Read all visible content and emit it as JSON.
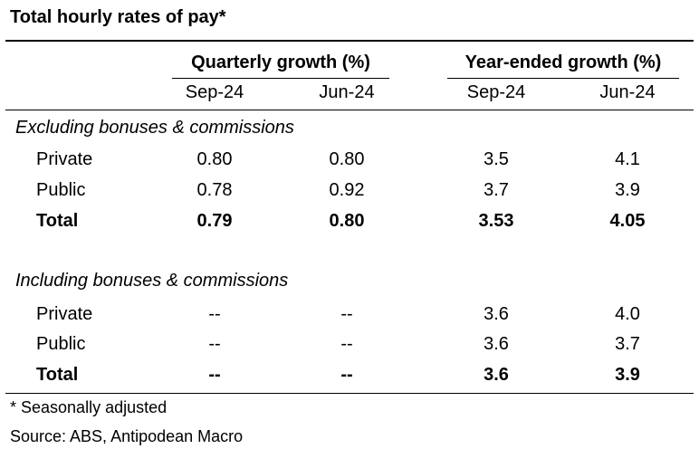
{
  "title": "Total hourly rates of pay*",
  "groups": {
    "quarterly": "Quarterly growth (%)",
    "yearly": "Year-ended growth (%)"
  },
  "periods": [
    "Sep-24",
    "Jun-24",
    "Sep-24",
    "Jun-24"
  ],
  "sections": [
    {
      "label": "Excluding bonuses & commissions",
      "rows": [
        {
          "label": "Private",
          "values": [
            "0.80",
            "0.80",
            "3.5",
            "4.1"
          ]
        },
        {
          "label": "Public",
          "values": [
            "0.78",
            "0.92",
            "3.7",
            "3.9"
          ]
        },
        {
          "label": "Total",
          "values": [
            "0.79",
            "0.80",
            "3.53",
            "4.05"
          ]
        }
      ]
    },
    {
      "label": "Including bonuses & commissions",
      "rows": [
        {
          "label": "Private",
          "values": [
            "--",
            "--",
            "3.6",
            "4.0"
          ]
        },
        {
          "label": "Public",
          "values": [
            "--",
            "--",
            "3.6",
            "3.7"
          ]
        },
        {
          "label": "Total",
          "values": [
            "--",
            "--",
            "3.6",
            "3.9"
          ]
        }
      ]
    }
  ],
  "footnotes": {
    "note": "* Seasonally adjusted",
    "source": "Source: ABS, Antipodean Macro"
  }
}
